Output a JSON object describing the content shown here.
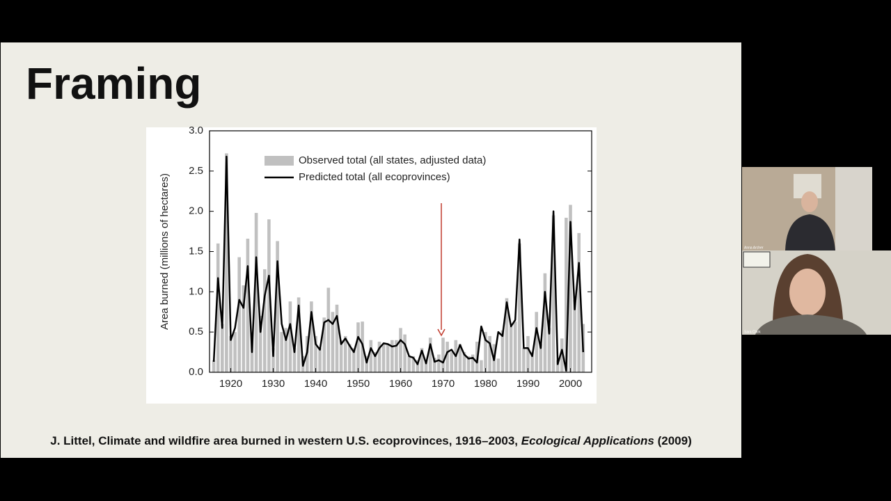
{
  "slide": {
    "title": "Framing",
    "citation": {
      "text": "J. Littel, Climate and wildfire area burned in western U.S. ecoprovinces, 1916–2003, ",
      "journal": "Ecological Applications",
      "year": " (2009)"
    }
  },
  "chart_data": {
    "type": "bar_line",
    "ylabel": "Area burned (millions of hectares)",
    "x": [
      1916,
      1917,
      1918,
      1919,
      1920,
      1921,
      1922,
      1923,
      1924,
      1925,
      1926,
      1927,
      1928,
      1929,
      1930,
      1931,
      1932,
      1933,
      1934,
      1935,
      1936,
      1937,
      1938,
      1939,
      1940,
      1941,
      1942,
      1943,
      1944,
      1945,
      1946,
      1947,
      1948,
      1949,
      1950,
      1951,
      1952,
      1953,
      1954,
      1955,
      1956,
      1957,
      1958,
      1959,
      1960,
      1961,
      1962,
      1963,
      1964,
      1965,
      1966,
      1967,
      1968,
      1969,
      1970,
      1971,
      1972,
      1973,
      1974,
      1975,
      1976,
      1977,
      1978,
      1979,
      1980,
      1981,
      1982,
      1983,
      1984,
      1985,
      1986,
      1987,
      1988,
      1989,
      1990,
      1991,
      1992,
      1993,
      1994,
      1995,
      1996,
      1997,
      1998,
      1999,
      2000,
      2001,
      2002,
      2003
    ],
    "series": [
      {
        "name": "Observed total (all states, adjusted data)",
        "color": "#c0c0c0",
        "kind": "bar",
        "values": [
          0.15,
          1.6,
          0.6,
          2.72,
          0.45,
          0.5,
          1.43,
          1.08,
          1.66,
          0.5,
          1.98,
          0.7,
          1.28,
          1.9,
          0.3,
          1.63,
          0.5,
          0.55,
          0.88,
          0.3,
          0.93,
          0.2,
          0.45,
          0.88,
          0.45,
          0.3,
          0.68,
          1.05,
          0.75,
          0.84,
          0.4,
          0.45,
          0.35,
          0.3,
          0.62,
          0.63,
          0.2,
          0.4,
          0.25,
          0.38,
          0.35,
          0.35,
          0.4,
          0.4,
          0.55,
          0.47,
          0.2,
          0.2,
          0.15,
          0.3,
          0.15,
          0.43,
          0.18,
          0.22,
          0.43,
          0.38,
          0.25,
          0.4,
          0.35,
          0.25,
          0.2,
          0.22,
          0.38,
          0.15,
          0.5,
          0.45,
          0.35,
          0.17,
          0.52,
          0.92,
          0.57,
          0.63,
          1.6,
          0.3,
          0.45,
          0.25,
          0.75,
          0.35,
          1.23,
          0.55,
          1.95,
          0.15,
          0.42,
          1.92,
          2.08,
          0.9,
          1.73,
          0.6
        ]
      },
      {
        "name": "Predicted total (all ecoprovinces)",
        "color": "#000000",
        "kind": "line",
        "values": [
          0.13,
          1.17,
          0.55,
          2.68,
          0.4,
          0.55,
          0.9,
          0.8,
          1.32,
          0.25,
          1.43,
          0.5,
          0.95,
          1.2,
          0.2,
          1.38,
          0.6,
          0.4,
          0.6,
          0.25,
          0.83,
          0.08,
          0.25,
          0.75,
          0.35,
          0.28,
          0.62,
          0.65,
          0.6,
          0.7,
          0.35,
          0.42,
          0.33,
          0.25,
          0.44,
          0.35,
          0.12,
          0.3,
          0.2,
          0.3,
          0.36,
          0.35,
          0.32,
          0.33,
          0.4,
          0.35,
          0.2,
          0.18,
          0.1,
          0.27,
          0.11,
          0.35,
          0.13,
          0.15,
          0.12,
          0.25,
          0.28,
          0.2,
          0.34,
          0.22,
          0.17,
          0.18,
          0.12,
          0.57,
          0.4,
          0.36,
          0.15,
          0.5,
          0.45,
          0.87,
          0.57,
          0.65,
          1.65,
          0.3,
          0.3,
          0.2,
          0.55,
          0.3,
          1.0,
          0.48,
          2.0,
          0.1,
          0.28,
          0.02,
          1.87,
          0.78,
          1.36,
          0.25
        ]
      }
    ],
    "xlim": [
      1915,
      2005
    ],
    "xticks": [
      1920,
      1930,
      1940,
      1950,
      1960,
      1970,
      1980,
      1990,
      2000
    ],
    "ylim": [
      0,
      3
    ],
    "yticks": [
      {
        "value": 0,
        "label": "0.0"
      },
      {
        "value": 0.5,
        "label": "0.5"
      },
      {
        "value": 1,
        "label": "1.0"
      },
      {
        "value": 1.5,
        "label": "1.5"
      },
      {
        "value": 2,
        "label": "2.0"
      },
      {
        "value": 2.5,
        "label": "2.5"
      },
      {
        "value": 3,
        "label": "3.0"
      }
    ]
  },
  "participants": [
    {
      "name": "Anna Archer"
    },
    {
      "name": "Sara Clark"
    }
  ]
}
